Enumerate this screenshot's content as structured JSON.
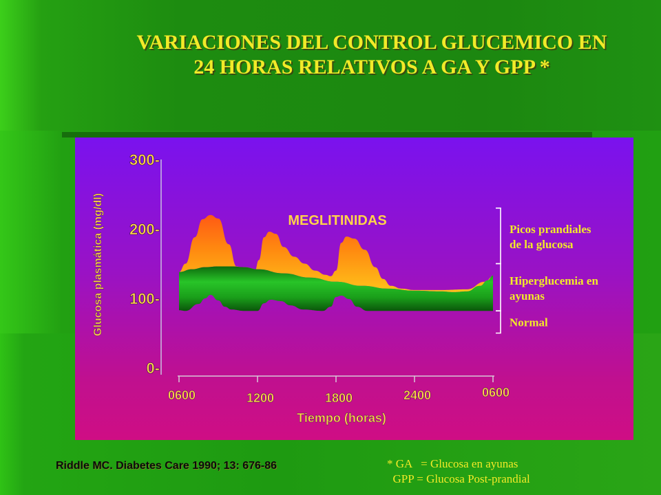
{
  "slide": {
    "title_line1": "VARIACIONES DEL CONTROL GLUCEMICO EN",
    "title_line2": "24 HORAS RELATIVOS A GA Y GPP *",
    "citation": "Riddle MC. Diabetes Care 1990; 13: 676-86",
    "footnote_line1": "* GA   = Glucosa en ayunas",
    "footnote_line2": "  GPP = Glucosa Post-prandial",
    "colors": {
      "title": "#f2ea28",
      "background_green": "#1f8a12",
      "panel_top": "#7a12ee",
      "panel_bottom": "#cf0e84",
      "peaks_orange": "#ff8a10",
      "fasting_green": "#1fb81f",
      "right_labels": "#f2ea28",
      "meglitinidas_label": "#ffd24a"
    }
  },
  "chart_data": {
    "type": "area",
    "annotation": "MEGLITINIDAS",
    "xlabel": "Tiempo (horas)",
    "ylabel": "Glucosa plasmática (mg/dl)",
    "ylim": [
      0,
      300
    ],
    "y_ticks": [
      "300-",
      "200-",
      "100-",
      "0-"
    ],
    "y_tick_values": [
      300,
      200,
      100,
      0
    ],
    "x_ticks": [
      "0600",
      "1200",
      "1800",
      "2400",
      "0600"
    ],
    "x_tick_values": [
      0,
      6,
      12,
      18,
      24
    ],
    "xlim": [
      0,
      24
    ],
    "grid": false,
    "series": [
      {
        "role": "postprandial peaks",
        "color": "#ff8a10",
        "x": [
          0,
          0.5,
          1.2,
          1.8,
          2.4,
          3.0,
          3.8,
          4.4,
          5.0,
          5.8,
          6.1,
          6.5,
          6.9,
          7.4,
          8.0,
          8.8,
          9.6,
          10.4,
          11.2,
          11.6,
          12.0,
          12.4,
          12.8,
          13.4,
          14.2,
          15.0,
          15.6,
          16.2,
          17.0,
          18.0,
          20.0,
          22.0,
          23.4,
          24.0
        ],
        "values": [
          138,
          150,
          188,
          214,
          220,
          215,
          178,
          146,
          142,
          140,
          155,
          188,
          196,
          193,
          174,
          160,
          150,
          140,
          134,
          132,
          140,
          180,
          189,
          186,
          170,
          145,
          128,
          118,
          114,
          112,
          112,
          113,
          124,
          132
        ]
      },
      {
        "role": "fasting hyperglycemia band (upper edge)",
        "color": "#1fb81f",
        "x": [
          0,
          1,
          2,
          3,
          4,
          5,
          6,
          8,
          10,
          12,
          14,
          16,
          18,
          20,
          21,
          22,
          23,
          23.6,
          24
        ],
        "values": [
          138,
          142,
          145,
          146,
          146,
          145,
          142,
          136,
          130,
          124,
          118,
          114,
          111,
          110,
          109,
          110,
          118,
          126,
          133
        ]
      },
      {
        "role": "normal baseline (lower edge)",
        "color": "#1c7a14",
        "x": [
          0,
          0.5,
          1.5,
          2.0,
          2.4,
          3.0,
          3.5,
          4.0,
          5.0,
          6.0,
          6.5,
          7.0,
          7.8,
          8.5,
          9.5,
          11.0,
          11.6,
          12.0,
          12.4,
          13.0,
          13.6,
          14.4,
          16.0,
          18.0,
          20.0,
          22.0,
          24.0
        ],
        "values": [
          83,
          82,
          92,
          100,
          105,
          97,
          88,
          84,
          82,
          82,
          93,
          98,
          96,
          90,
          84,
          82,
          88,
          102,
          104,
          99,
          88,
          82,
          82,
          82,
          82,
          82,
          82
        ]
      }
    ],
    "legend": [
      {
        "label_line1": "Picos prandiales",
        "label_line2": "de la glucosa",
        "y_range": [
          150,
          230
        ]
      },
      {
        "label_line1": "Hiperglucemia en",
        "label_line2": "ayunas",
        "y_range": [
          82,
          150
        ]
      },
      {
        "label_line1": "Normal",
        "label_line2": "",
        "y_range": [
          50,
          82
        ]
      }
    ]
  }
}
